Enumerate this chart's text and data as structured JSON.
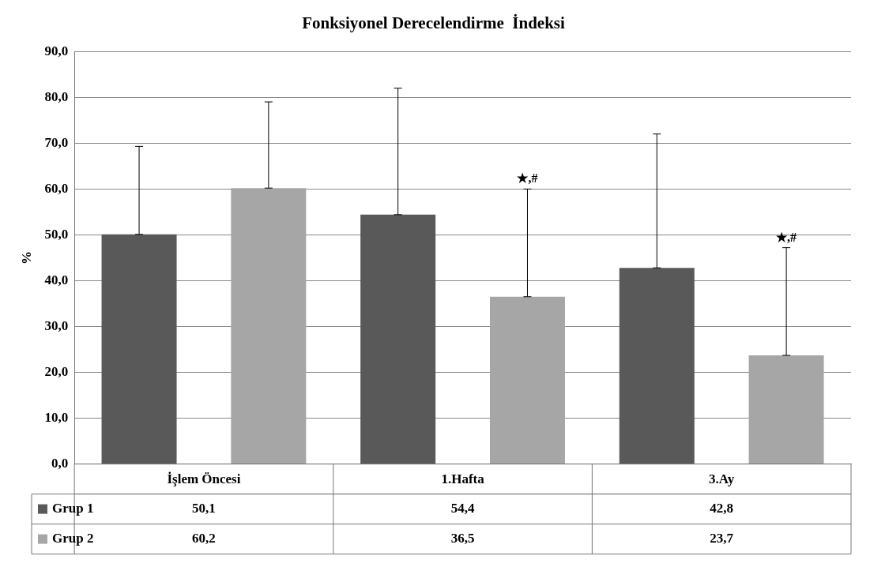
{
  "chart_data": {
    "type": "bar",
    "title": "Fonksiyonel Derecelendirme  İndeksi",
    "ylabel": "%",
    "categories": [
      "İşlem Öncesi",
      "1.Hafta",
      "3.Ay"
    ],
    "series": [
      {
        "name": "Grup 1",
        "color": "#595959",
        "values": [
          50.1,
          54.4,
          42.8
        ],
        "value_labels": [
          "50,1",
          "54,4",
          "42,8"
        ],
        "errors": [
          [
            50.1,
            69.3
          ],
          [
            54.4,
            82.0
          ],
          [
            42.8,
            72.0
          ]
        ]
      },
      {
        "name": "Grup 2",
        "color": "#a6a6a6",
        "values": [
          60.2,
          36.5,
          23.7
        ],
        "value_labels": [
          "60,2",
          "36,5",
          "23,7"
        ],
        "errors": [
          [
            60.2,
            79.0
          ],
          [
            36.5,
            60.0
          ],
          [
            23.7,
            47.2
          ]
        ]
      }
    ],
    "ylim": [
      0,
      90
    ],
    "yticks": [
      {
        "value": 0,
        "label": "0,0"
      },
      {
        "value": 10,
        "label": "10,0"
      },
      {
        "value": 20,
        "label": "20,0"
      },
      {
        "value": 30,
        "label": "30,0"
      },
      {
        "value": 40,
        "label": "40,0"
      },
      {
        "value": 50,
        "label": "50,0"
      },
      {
        "value": 60,
        "label": "60,0"
      },
      {
        "value": 70,
        "label": "70,0"
      },
      {
        "value": 80,
        "label": "80,0"
      },
      {
        "value": 90,
        "label": "90,0"
      }
    ],
    "annotations": [
      "★,#",
      "★,#"
    ],
    "grid": "y",
    "legend": "bottom"
  }
}
